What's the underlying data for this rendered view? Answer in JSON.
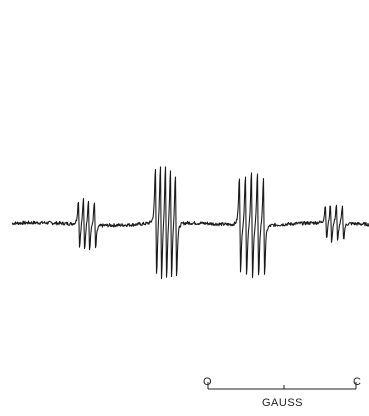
{
  "chart_data": {
    "type": "line",
    "title": "",
    "xlabel": "",
    "ylabel": "",
    "grid": false,
    "legend": "none",
    "trace_color": "#1a1a1a",
    "baseline": 0,
    "ylim": [
      -100,
      100
    ],
    "description_of_groups": [
      {
        "group": 1,
        "center_field_rel": 87,
        "lines": [
          {
            "x": 79,
            "amp": 40
          },
          {
            "x": 84,
            "amp": 44
          },
          {
            "x": 89,
            "amp": 44
          },
          {
            "x": 95,
            "amp": 40
          }
        ]
      },
      {
        "group": 2,
        "center_field_rel": 167,
        "lines": [
          {
            "x": 156,
            "amp": 92
          },
          {
            "x": 161,
            "amp": 98
          },
          {
            "x": 166,
            "amp": 98
          },
          {
            "x": 171,
            "amp": 94
          },
          {
            "x": 176,
            "amp": 88
          }
        ]
      },
      {
        "group": 3,
        "center_field_rel": 253,
        "lines": [
          {
            "x": 240,
            "amp": 82
          },
          {
            "x": 246,
            "amp": 88
          },
          {
            "x": 252,
            "amp": 92
          },
          {
            "x": 258,
            "amp": 90
          },
          {
            "x": 264,
            "amp": 82
          }
        ]
      },
      {
        "group": 4,
        "center_field_rel": 338,
        "lines": [
          {
            "x": 326,
            "amp": 30
          },
          {
            "x": 331,
            "amp": 32
          },
          {
            "x": 337,
            "amp": 32
          },
          {
            "x": 343,
            "amp": 28
          }
        ]
      }
    ],
    "scale_bar": {
      "left_label": "O",
      "right_label": "C",
      "unit_label": "GAUSS"
    }
  }
}
